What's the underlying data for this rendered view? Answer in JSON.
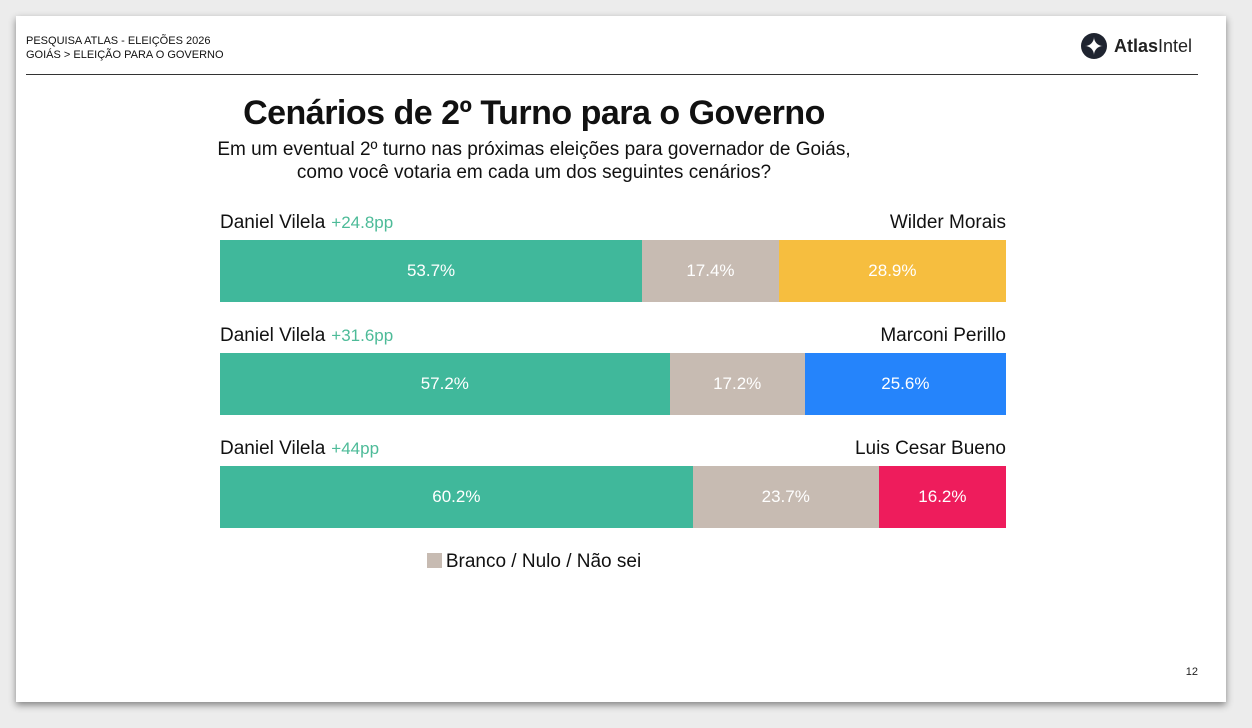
{
  "header": {
    "line1": "PESQUISA ATLAS - ELEIÇÕES 2026",
    "line2": "GOIÁS > ELEIÇÃO PARA O GOVERNO",
    "brand_bold": "Atlas",
    "brand_light": "Intel"
  },
  "page_number": "12",
  "colors": {
    "leader": "#40b89b",
    "undecided": "#c7bbb2",
    "margin_text": "#4dbb98"
  },
  "chart_data": {
    "type": "bar",
    "orientation": "horizontal-stacked-100",
    "title": "Cenários de 2º Turno para o Governo",
    "subtitle_line1": "Em um eventual 2º turno nas próximas eleições para governador de Goiás,",
    "subtitle_line2": "como você votaria em cada um dos seguintes cenários?",
    "legend": {
      "label": "Branco / Nulo / Não sei",
      "color": "#c7bbb2",
      "placement": "bottom-center"
    },
    "scenarios": [
      {
        "left_name": "Daniel Vilela",
        "margin": "+24.8pp",
        "right_name": "Wilder Morais",
        "values": [
          53.7,
          17.4,
          28.9
        ],
        "labels": [
          "53.7%",
          "17.4%",
          "28.9%"
        ],
        "colors": [
          "#40b89b",
          "#c7bbb2",
          "#f6be3f"
        ]
      },
      {
        "left_name": "Daniel Vilela",
        "margin": "+31.6pp",
        "right_name": "Marconi Perillo",
        "values": [
          57.2,
          17.2,
          25.6
        ],
        "labels": [
          "57.2%",
          "17.2%",
          "25.6%"
        ],
        "colors": [
          "#40b89b",
          "#c7bbb2",
          "#2584fb"
        ]
      },
      {
        "left_name": "Daniel Vilela",
        "margin": "+44pp",
        "right_name": "Luis Cesar Bueno",
        "values": [
          60.2,
          23.7,
          16.2
        ],
        "labels": [
          "60.2%",
          "23.7%",
          "16.2%"
        ],
        "colors": [
          "#40b89b",
          "#c7bbb2",
          "#ee1c5c"
        ]
      }
    ]
  }
}
